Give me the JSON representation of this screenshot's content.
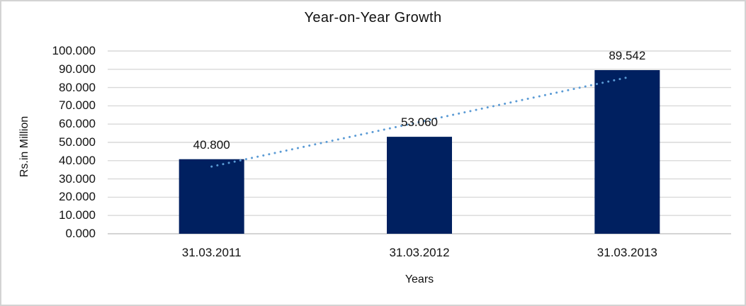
{
  "chart_data": {
    "type": "bar",
    "title": "Year-on-Year Growth",
    "xlabel": "Years",
    "ylabel": "Rs.in Million",
    "categories": [
      "31.03.2011",
      "31.03.2012",
      "31.03.2013"
    ],
    "values": [
      40.8,
      53.06,
      89.542
    ],
    "data_labels": [
      "40.800",
      "53.060",
      "89.542"
    ],
    "ylim": [
      0,
      100
    ],
    "ytick_step": 10,
    "ytick_labels": [
      "0.000",
      "10.000",
      "20.000",
      "30.000",
      "40.000",
      "50.000",
      "60.000",
      "70.000",
      "80.000",
      "90.000",
      "100.000"
    ],
    "grid": true,
    "legend_position": "none",
    "trendline": {
      "type": "linear",
      "style": "dotted",
      "endpoint_values": [
        36.763,
        85.505
      ],
      "color": "#5B9BD5"
    },
    "colors": {
      "bar_fill": "#002060",
      "gridline": "#d9d9d9",
      "axis_line": "#c6c6c6",
      "frame_border": "#d3d3d3",
      "text": "#111111"
    }
  }
}
